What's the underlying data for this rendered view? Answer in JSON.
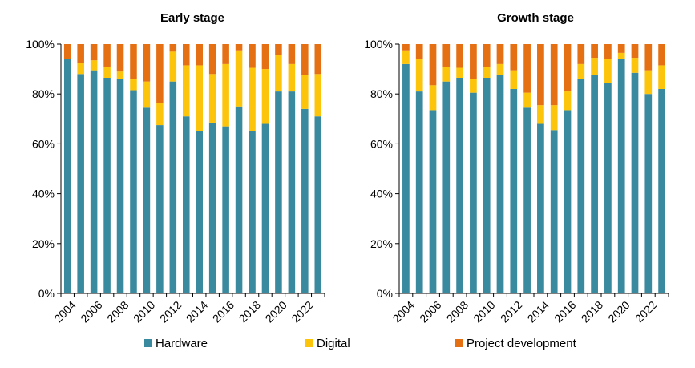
{
  "chart_data": [
    {
      "type": "bar",
      "stacked": true,
      "title": "Early stage",
      "ylim": [
        0,
        100
      ],
      "yticks": [
        "0%",
        "20%",
        "40%",
        "60%",
        "80%",
        "100%"
      ],
      "xticks": [
        "2004",
        "2006",
        "2008",
        "2010",
        "2012",
        "2014",
        "2016",
        "2018",
        "2020",
        "2022"
      ],
      "categories": [
        "2004",
        "2005",
        "2006",
        "2007",
        "2008",
        "2009",
        "2010",
        "2011",
        "2012",
        "2013",
        "2014",
        "2015",
        "2016",
        "2017",
        "2018",
        "2019",
        "2020",
        "2021",
        "2022",
        "2023"
      ],
      "series": [
        {
          "name": "Hardware",
          "values": [
            94,
            88,
            89.5,
            86.5,
            86,
            81.5,
            74.5,
            67.5,
            85,
            71,
            65,
            68.5,
            67,
            75,
            65,
            68,
            81,
            81,
            74,
            71
          ]
        },
        {
          "name": "Digital",
          "values": [
            0,
            4.5,
            4,
            4.5,
            3,
            4.5,
            10.5,
            9,
            12,
            20.5,
            26.5,
            19.5,
            25,
            22.5,
            25.5,
            22,
            14.5,
            11,
            13.5,
            17
          ]
        },
        {
          "name": "Project development",
          "values": [
            6,
            7.5,
            6.5,
            9,
            11,
            14,
            15,
            23.5,
            3,
            8.5,
            8.5,
            12,
            8,
            2.5,
            9.5,
            10,
            4.5,
            8,
            12.5,
            12
          ]
        }
      ]
    },
    {
      "type": "bar",
      "stacked": true,
      "title": "Growth stage",
      "ylim": [
        0,
        100
      ],
      "yticks": [
        "0%",
        "20%",
        "40%",
        "60%",
        "80%",
        "100%"
      ],
      "xticks": [
        "2004",
        "2006",
        "2008",
        "2010",
        "2012",
        "2014",
        "2016",
        "2018",
        "2020",
        "2022"
      ],
      "categories": [
        "2004",
        "2005",
        "2006",
        "2007",
        "2008",
        "2009",
        "2010",
        "2011",
        "2012",
        "2013",
        "2014",
        "2015",
        "2016",
        "2017",
        "2018",
        "2019",
        "2020",
        "2021",
        "2022",
        "2023"
      ],
      "series": [
        {
          "name": "Hardware",
          "values": [
            92,
            81,
            73.5,
            85,
            86.5,
            80.5,
            86.5,
            87.5,
            82,
            74.5,
            68,
            65.5,
            73.5,
            86,
            87.5,
            84.5,
            94,
            88.5,
            80,
            82
          ]
        },
        {
          "name": "Digital",
          "values": [
            5.5,
            13,
            10,
            6,
            4,
            5.5,
            4.5,
            4.5,
            7.5,
            6,
            7.5,
            10,
            7.5,
            6,
            7,
            9.5,
            2.5,
            6,
            9.5,
            9.5
          ]
        },
        {
          "name": "Project development",
          "values": [
            2.5,
            6,
            16.5,
            9,
            9.5,
            14,
            9,
            8,
            10.5,
            19.5,
            24.5,
            24.5,
            19,
            8,
            5.5,
            6,
            3.5,
            5.5,
            10.5,
            8.5
          ]
        }
      ]
    }
  ],
  "legend": [
    {
      "label": "Hardware",
      "color": "#3A8A9F"
    },
    {
      "label": "Digital",
      "color": "#FCC40A"
    },
    {
      "label": "Project development",
      "color": "#E57014"
    }
  ],
  "colors": {
    "Hardware": "#3A8A9F",
    "Digital": "#FCC40A",
    "Project development": "#E57014"
  }
}
